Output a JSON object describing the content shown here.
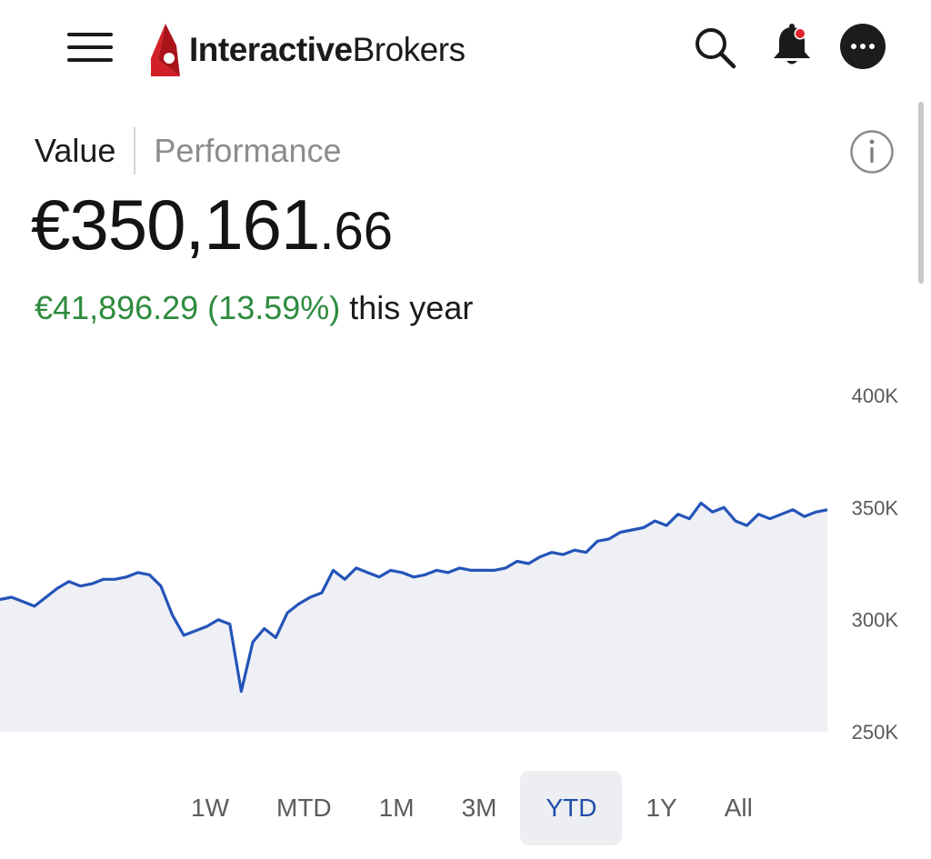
{
  "header": {
    "brand_bold": "Interactive",
    "brand_light": "Brokers",
    "icons": [
      "menu-icon",
      "logo-icon",
      "search-icon",
      "bell-icon",
      "more-icon"
    ],
    "notification_dot_color": "#e0242b"
  },
  "tabs": {
    "value_label": "Value",
    "performance_label": "Performance",
    "active": "Value"
  },
  "portfolio": {
    "value_main": "€350,161",
    "value_cents": ".66",
    "change_amount": "€41,896.29 (13.59%)",
    "change_suffix": " this year",
    "change_color": "#2e8b3e"
  },
  "chart_data": {
    "type": "area",
    "series": [
      {
        "values": [
          309,
          310,
          308,
          306,
          310,
          314,
          317,
          315,
          316,
          318,
          318,
          319,
          321,
          320,
          315,
          302,
          293,
          295,
          297,
          300,
          298,
          268,
          290,
          296,
          292,
          303,
          307,
          310,
          312,
          322,
          318,
          323,
          321,
          319,
          322,
          321,
          319,
          320,
          322,
          321,
          323,
          322,
          322,
          322,
          323,
          326,
          325,
          328,
          330,
          329,
          331,
          330,
          335,
          336,
          339,
          340,
          341,
          344,
          342,
          347,
          345,
          352,
          348,
          350,
          344,
          342,
          347,
          345,
          347,
          349,
          346,
          348,
          349
        ]
      }
    ],
    "y_ticks": [
      "400K",
      "350K",
      "300K",
      "250K"
    ],
    "ylim": [
      250000,
      400000
    ],
    "line_color": "#2454b8",
    "fill_color": "#eef0f6"
  },
  "ranges": {
    "items": [
      "1W",
      "MTD",
      "1M",
      "3M",
      "YTD",
      "1Y",
      "All"
    ],
    "active": "YTD",
    "active_color": "#1f4ea8"
  }
}
